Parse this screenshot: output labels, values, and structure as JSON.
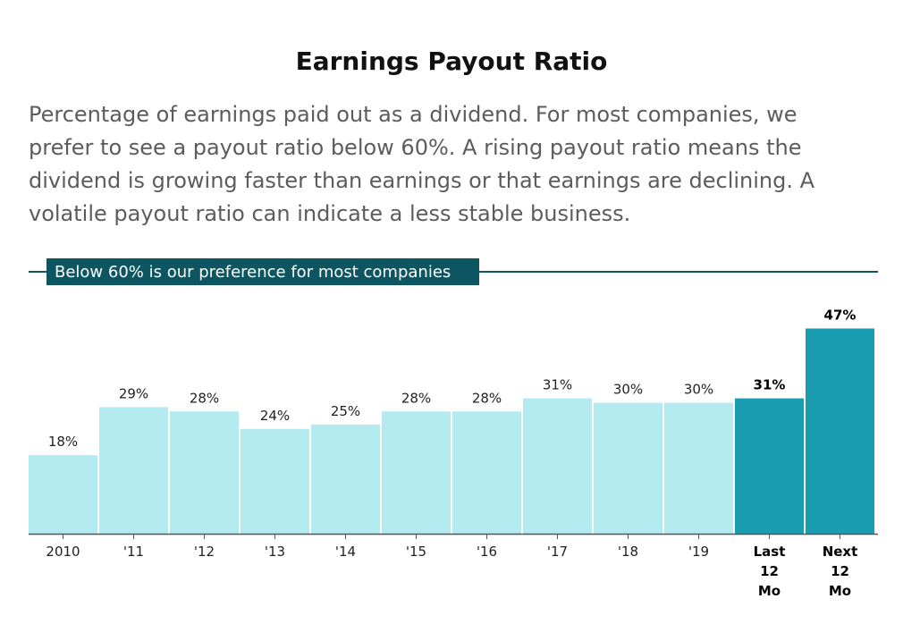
{
  "chart_data": {
    "type": "bar",
    "title": "Earnings Payout Ratio",
    "subtitle_lines": [
      "Percentage of earnings paid out as a dividend. For most companies, we",
      "prefer to see a payout ratio below 60%. A rising payout ratio means the",
      "dividend is growing faster than earnings or that earnings are declining. A",
      "volatile payout ratio can indicate a less stable business."
    ],
    "reference_line": {
      "value": 60,
      "label": "Below 60% is our preference for most companies",
      "color": "#0d5561"
    },
    "categories": [
      [
        "2010"
      ],
      [
        "'11"
      ],
      [
        "'12"
      ],
      [
        "'13"
      ],
      [
        "'14"
      ],
      [
        "'15"
      ],
      [
        "'16"
      ],
      [
        "'17"
      ],
      [
        "'18"
      ],
      [
        "'19"
      ],
      [
        "Last",
        "12",
        "Mo"
      ],
      [
        "Next",
        "12",
        "Mo"
      ]
    ],
    "values": [
      18,
      29,
      28,
      24,
      25,
      28,
      28,
      31,
      30,
      30,
      31,
      47
    ],
    "value_labels": [
      "18%",
      "29%",
      "28%",
      "24%",
      "25%",
      "28%",
      "28%",
      "31%",
      "30%",
      "30%",
      "31%",
      "47%"
    ],
    "highlight": [
      false,
      false,
      false,
      false,
      false,
      false,
      false,
      false,
      false,
      false,
      true,
      true
    ],
    "colors": {
      "bar": "#b3ebf1",
      "bar_highlight": "#1a9db0",
      "axis": "#555555"
    },
    "ylim": [
      0,
      60
    ],
    "grid": false,
    "legend": "none"
  }
}
